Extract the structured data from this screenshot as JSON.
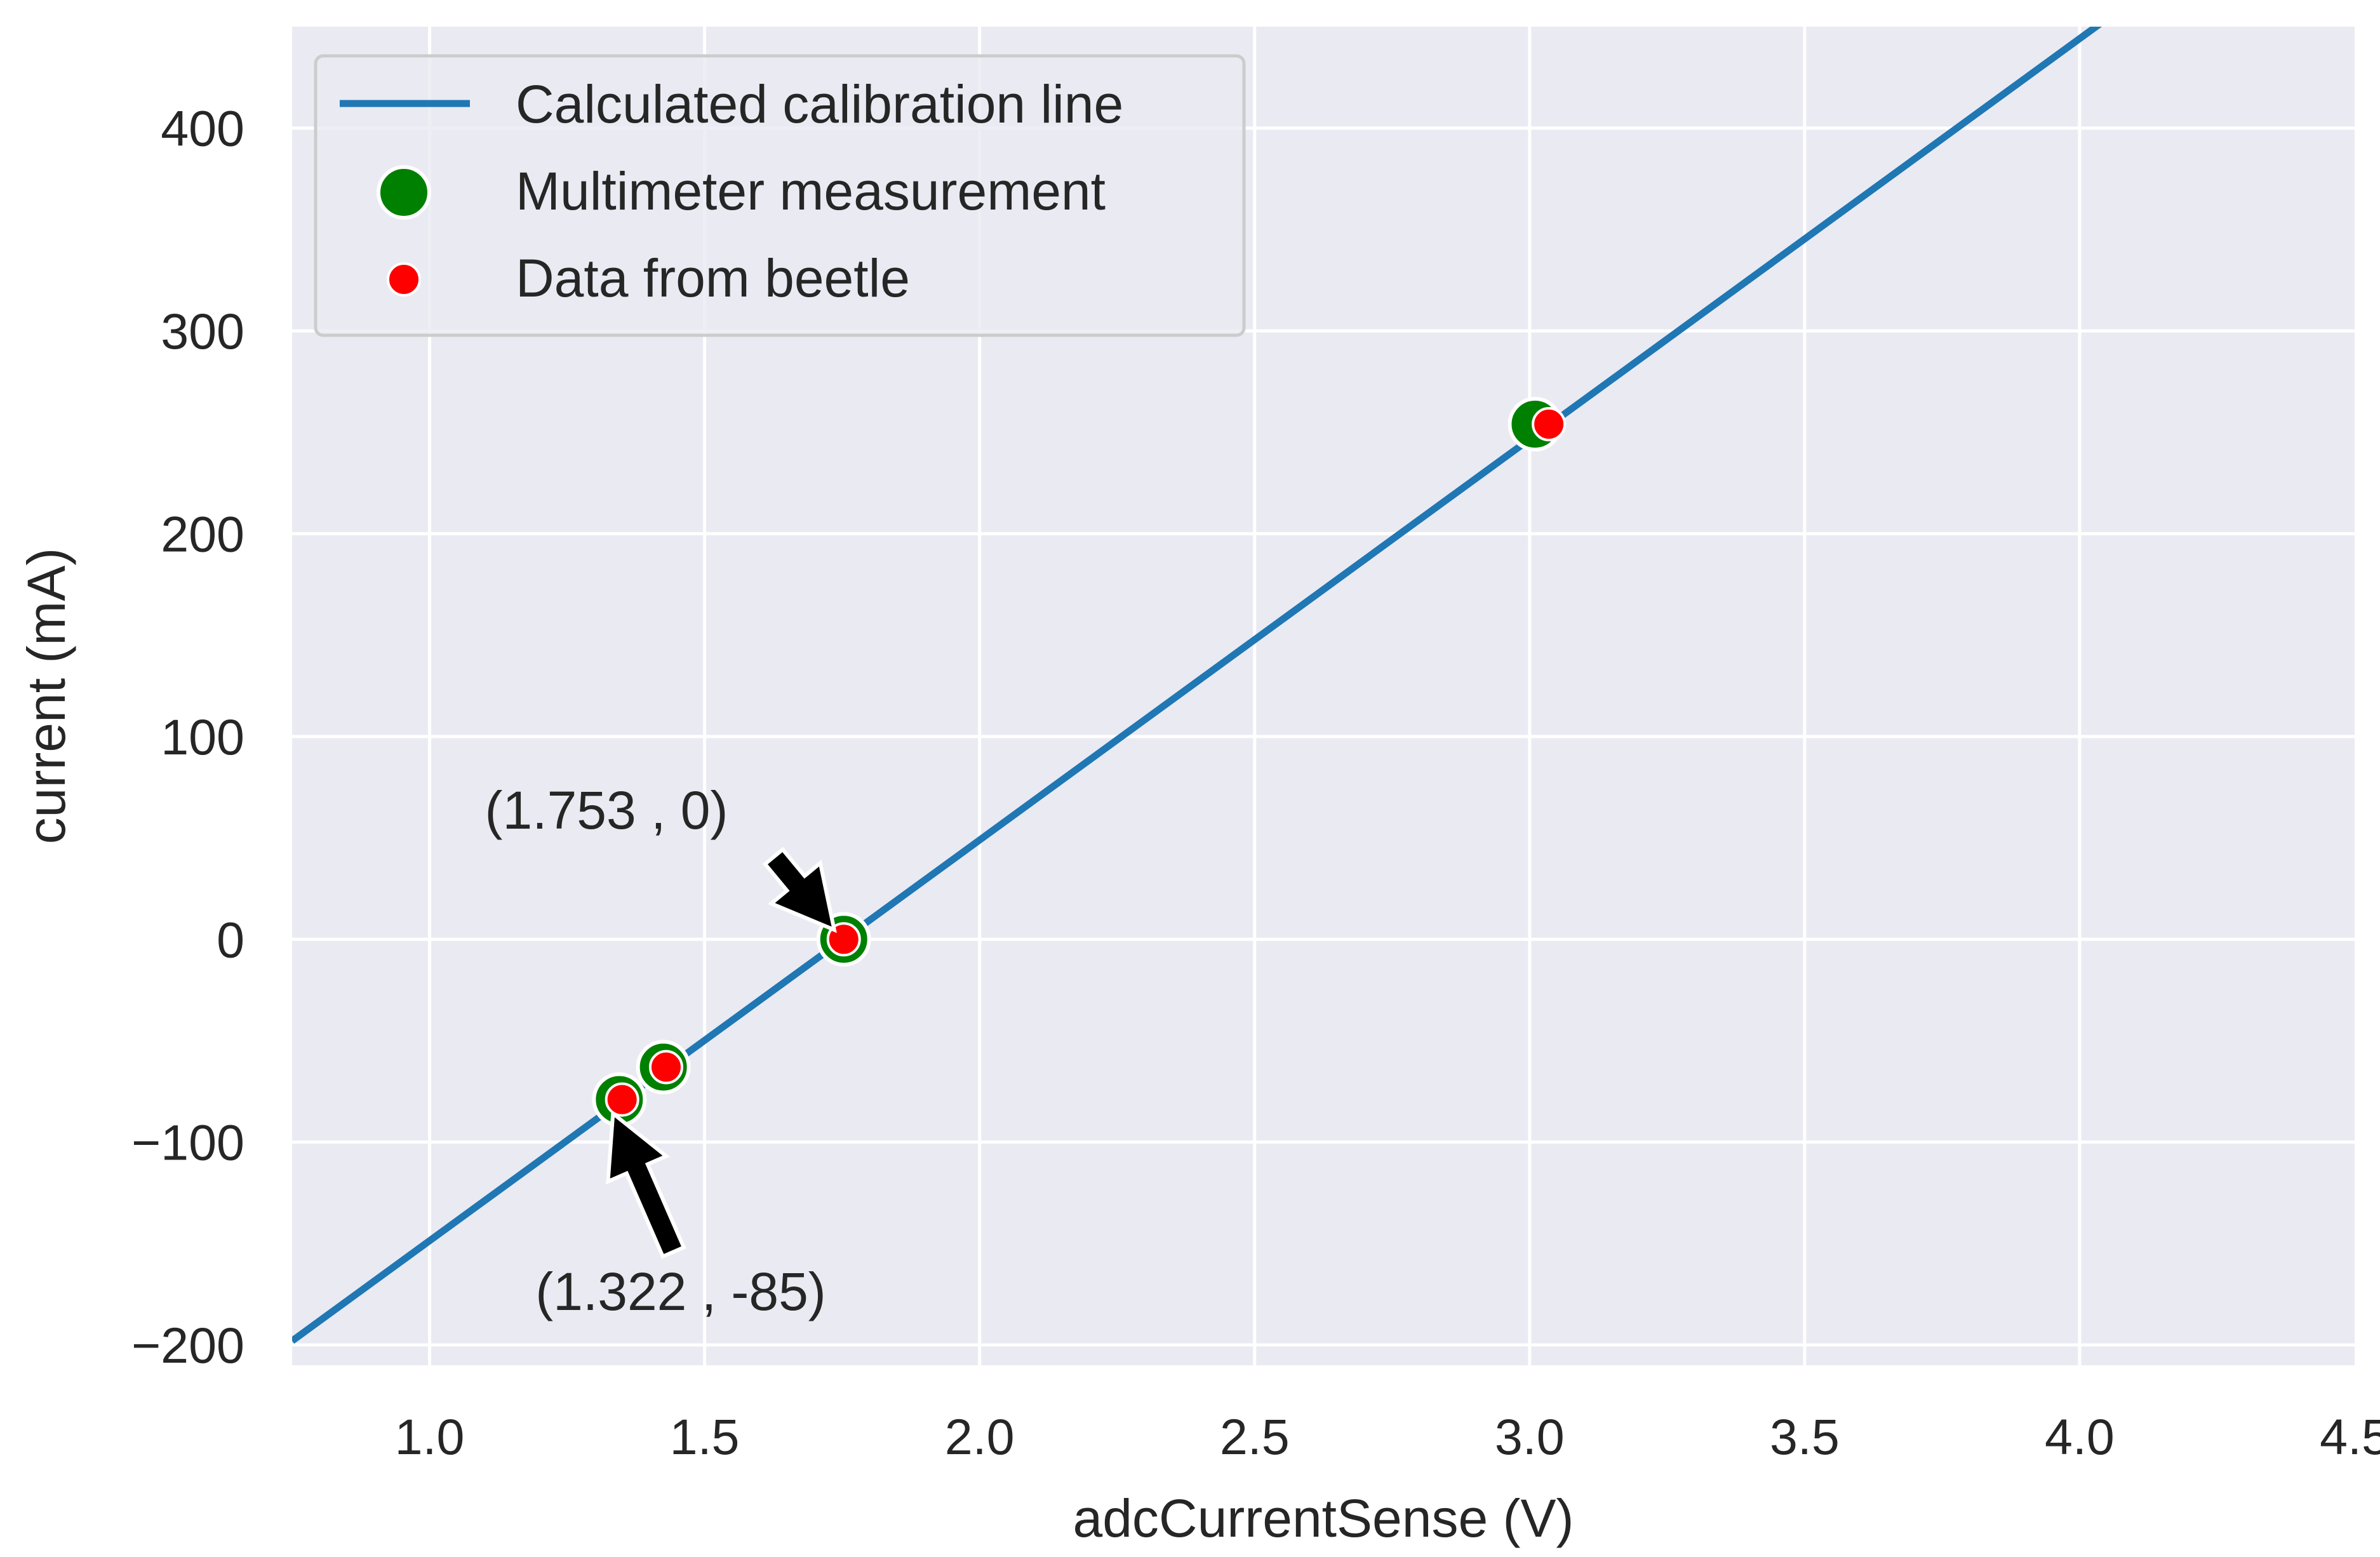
{
  "chart_data": {
    "type": "scatter",
    "xlabel": "adcCurrentSense (V)",
    "ylabel": "current (mA)",
    "xlim": [
      0.75,
      4.5
    ],
    "ylim": [
      -210,
      450
    ],
    "xticks": [
      1.0,
      1.5,
      2.0,
      2.5,
      3.0,
      3.5,
      4.0,
      4.5
    ],
    "xtick_labels": [
      "1.0",
      "1.5",
      "2.0",
      "2.5",
      "3.0",
      "3.5",
      "4.0",
      "4.5"
    ],
    "yticks": [
      -200,
      -100,
      0,
      100,
      200,
      300,
      400
    ],
    "ytick_labels": [
      "−200",
      "−100",
      "0",
      "100",
      "200",
      "300",
      "400"
    ],
    "grid": true,
    "legend_position": "top-left",
    "series": [
      {
        "name": "Calculated calibration line",
        "kind": "line",
        "color": "#1f77b4",
        "x": [
          0.75,
          4.04
        ],
        "y": [
          -198,
          452
        ]
      },
      {
        "name": "Multimeter measurement",
        "kind": "scatter",
        "color": "#008000",
        "x": [
          1.345,
          1.425,
          1.753,
          3.01
        ],
        "y": [
          -79,
          -63,
          0,
          254
        ]
      },
      {
        "name": "Data from beetle",
        "kind": "scatter",
        "color": "#ff0000",
        "x": [
          1.35,
          1.43,
          1.753,
          3.035
        ],
        "y": [
          -79,
          -63,
          0,
          254
        ]
      }
    ],
    "annotations": [
      {
        "text": "(1.753 , 0)",
        "x": 1.753,
        "y": 0
      },
      {
        "text": "(1.322 , -85)",
        "x": 1.345,
        "y": -79
      }
    ]
  }
}
